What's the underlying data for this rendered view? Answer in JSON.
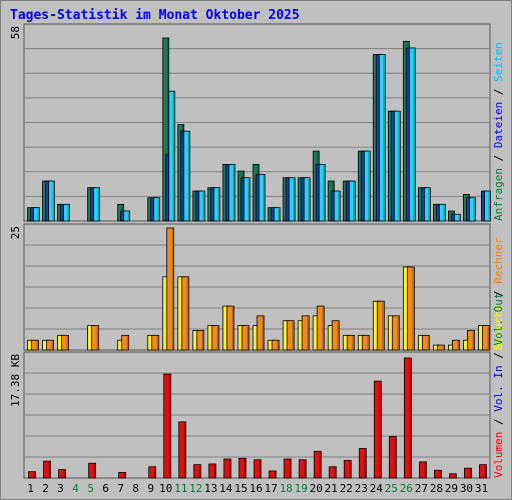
{
  "title": "Tages-Statistik im Monat Oktober 2025",
  "chart_data": [
    {
      "type": "bar",
      "panel": "top",
      "ymax_label": "58",
      "ylim": [
        0,
        58
      ],
      "x": [
        "1",
        "2",
        "3",
        "4",
        "5",
        "6",
        "7",
        "8",
        "9",
        "10",
        "11",
        "12",
        "13",
        "14",
        "15",
        "16",
        "17",
        "18",
        "19",
        "20",
        "21",
        "22",
        "23",
        "24",
        "25",
        "26",
        "27",
        "28",
        "29",
        "30",
        "31"
      ],
      "weekend_days": [
        "4",
        "5",
        "11",
        "12",
        "18",
        "19",
        "25",
        "26"
      ],
      "side_label_parts": [
        {
          "text": "Anfragen",
          "color": "#008040"
        },
        {
          "text": " / ",
          "color": "#000000"
        },
        {
          "text": "Dateien",
          "color": "#0000ff"
        },
        {
          "text": " / ",
          "color": "#000000"
        },
        {
          "text": "Seiten",
          "color": "#00bfff"
        }
      ],
      "series": [
        {
          "name": "Anfragen",
          "color": "#1f7a5a",
          "values": [
            4,
            12,
            5,
            0,
            10,
            0,
            5,
            0,
            7,
            55,
            29,
            9,
            10,
            17,
            15,
            17,
            4,
            13,
            13,
            21,
            12,
            12,
            21,
            50,
            33,
            54,
            10,
            5,
            3,
            8,
            0
          ]
        },
        {
          "name": "Dateien",
          "color": "#1a3fa8",
          "values": [
            4,
            12,
            5,
            0,
            10,
            0,
            3,
            0,
            7,
            20,
            27,
            9,
            10,
            17,
            13,
            14,
            4,
            13,
            13,
            17,
            9,
            12,
            21,
            50,
            33,
            52,
            10,
            5,
            2,
            7,
            9
          ]
        },
        {
          "name": "Seiten",
          "color": "#27d3f0",
          "values": [
            4,
            12,
            5,
            0,
            10,
            0,
            3,
            0,
            7,
            39,
            27,
            9,
            10,
            17,
            13,
            14,
            4,
            13,
            13,
            17,
            9,
            12,
            21,
            50,
            33,
            52,
            10,
            5,
            2,
            7,
            9
          ]
        }
      ]
    },
    {
      "type": "bar",
      "panel": "middle",
      "ymax_label": "25",
      "ylim": [
        0,
        25
      ],
      "side_label_parts": [
        {
          "text": "Besuche",
          "color": "#ffff00"
        },
        {
          "text": " / ",
          "color": "#000000"
        },
        {
          "text": "Rechner",
          "color": "#ff8000"
        }
      ],
      "series": [
        {
          "name": "Besuche",
          "color": "#ffee33",
          "values": [
            2,
            2,
            3,
            0,
            5,
            0,
            2,
            0,
            3,
            15,
            15,
            4,
            5,
            9,
            5,
            5,
            2,
            6,
            6,
            7,
            5,
            3,
            3,
            10,
            7,
            17,
            3,
            1,
            1,
            2,
            5
          ]
        },
        {
          "name": "Rechner",
          "color": "#f08a22",
          "values": [
            2,
            2,
            3,
            0,
            5,
            0,
            3,
            0,
            3,
            25,
            15,
            4,
            5,
            9,
            5,
            7,
            2,
            6,
            7,
            9,
            6,
            3,
            3,
            10,
            7,
            17,
            3,
            1,
            2,
            4,
            5
          ]
        }
      ]
    },
    {
      "type": "bar",
      "panel": "bottom",
      "ymax_label": "17.38 KB",
      "ylim": [
        0,
        17.38
      ],
      "side_label_parts": [
        {
          "text": "Volumen",
          "color": "#ff0000"
        },
        {
          "text": " / ",
          "color": "#000000"
        },
        {
          "text": "Vol. In",
          "color": "#0000ff"
        },
        {
          "text": " / ",
          "color": "#000000"
        },
        {
          "text": "Vol. Out",
          "color": "#008040"
        }
      ],
      "series": [
        {
          "name": "Volumen",
          "color": "#e01010",
          "values": [
            0.9,
            2.4,
            1.2,
            0,
            2.1,
            0,
            0.8,
            0,
            1.6,
            14.8,
            8.0,
            1.9,
            2.0,
            2.7,
            2.8,
            2.6,
            1.0,
            2.7,
            2.6,
            3.8,
            1.6,
            2.5,
            4.2,
            13.8,
            5.9,
            17.1,
            2.3,
            1.1,
            0.6,
            1.4,
            1.9
          ]
        }
      ]
    }
  ]
}
